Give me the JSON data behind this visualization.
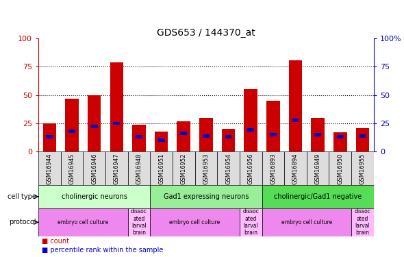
{
  "title": "GDS653 / 144370_at",
  "samples": [
    "GSM16944",
    "GSM16945",
    "GSM16946",
    "GSM16947",
    "GSM16948",
    "GSM16951",
    "GSM16952",
    "GSM16953",
    "GSM16954",
    "GSM16956",
    "GSM16893",
    "GSM16894",
    "GSM16949",
    "GSM16950",
    "GSM16955"
  ],
  "count_values": [
    25,
    47,
    50,
    79,
    24,
    18,
    27,
    30,
    20,
    55,
    45,
    81,
    30,
    17,
    21
  ],
  "percentile_values": [
    13,
    18,
    22,
    25,
    13,
    10,
    16,
    14,
    13,
    19,
    15,
    28,
    15,
    13,
    14
  ],
  "bar_color": "#cc0000",
  "pct_color": "#0000cc",
  "ylim": [
    0,
    100
  ],
  "y_ticks": [
    0,
    25,
    50,
    75,
    100
  ],
  "cell_types": [
    {
      "label": "cholinergic neurons",
      "start": 0,
      "end": 5,
      "color": "#ccffcc"
    },
    {
      "label": "Gad1 expressing neurons",
      "start": 5,
      "end": 10,
      "color": "#99ee99"
    },
    {
      "label": "cholinergic/Gad1 negative",
      "start": 10,
      "end": 15,
      "color": "#55dd55"
    }
  ],
  "protocols": [
    {
      "label": "embryo cell culture",
      "start": 0,
      "end": 4,
      "color": "#ee88ee"
    },
    {
      "label": "dissoc\nated\nlarval\nbrain",
      "start": 4,
      "end": 5,
      "color": "#ffbbff"
    },
    {
      "label": "embryo cell culture",
      "start": 5,
      "end": 9,
      "color": "#ee88ee"
    },
    {
      "label": "dissoc\nated\nlarval\nbrain",
      "start": 9,
      "end": 10,
      "color": "#ffbbff"
    },
    {
      "label": "embryo cell culture",
      "start": 10,
      "end": 14,
      "color": "#ee88ee"
    },
    {
      "label": "dissoc\nated\nlarval\nbrain",
      "start": 14,
      "end": 15,
      "color": "#ffbbff"
    }
  ],
  "bg_color": "#ffffff",
  "tick_color_left": "#cc0000",
  "tick_color_right": "#0000cc",
  "xtick_bg": "#dddddd"
}
